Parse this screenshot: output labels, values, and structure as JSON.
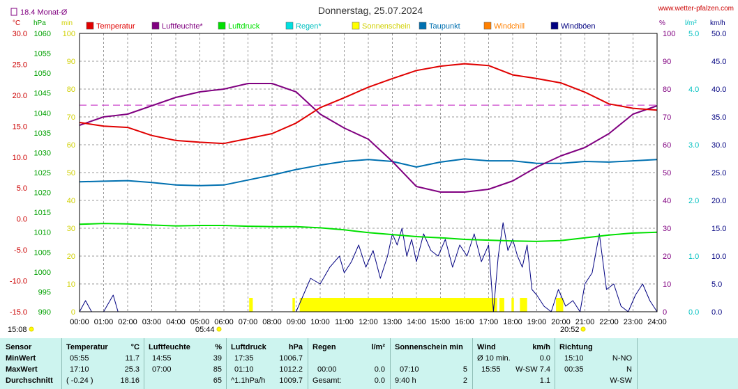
{
  "chart_data": {
    "type": "line",
    "title": "Donnerstag, 25.07.2024",
    "source": "www.wetter-pfalzen.com",
    "monthly_avg_label": "18.4 Monat-Ø",
    "grid": true,
    "axes": {
      "temp": {
        "unit": "°C",
        "range": [
          -15,
          30
        ],
        "ticks": [
          "-15.0",
          "-10.0",
          "-5.0",
          "0.0",
          "5.0",
          "10.0",
          "15.0",
          "20.0",
          "25.0",
          "30.0"
        ]
      },
      "pressure": {
        "unit": "hPa",
        "range": [
          990,
          1060
        ],
        "ticks": [
          "990",
          "995",
          "1000",
          "1005",
          "1010",
          "1015",
          "1020",
          "1025",
          "1030",
          "1035",
          "1040",
          "1045",
          "1050",
          "1055",
          "1060"
        ]
      },
      "sunshine": {
        "unit": "min",
        "range": [
          0,
          100
        ],
        "ticks": [
          "0",
          "10",
          "20",
          "30",
          "40",
          "50",
          "60",
          "70",
          "80",
          "90",
          "100"
        ]
      },
      "humidity": {
        "unit": "%",
        "range": [
          0,
          100
        ],
        "ticks": [
          "0",
          "10",
          "20",
          "30",
          "40",
          "50",
          "60",
          "70",
          "80",
          "90",
          "100"
        ]
      },
      "rain": {
        "unit": "l/m²",
        "range": [
          0,
          5
        ],
        "ticks": [
          "0.0",
          "1.0",
          "2.0",
          "3.0",
          "4.0",
          "5.0"
        ]
      },
      "wind": {
        "unit": "km/h",
        "range": [
          0,
          50
        ],
        "ticks": [
          "0.0",
          "5.0",
          "10.0",
          "15.0",
          "20.0",
          "25.0",
          "30.0",
          "35.0",
          "40.0",
          "45.0",
          "50.0"
        ]
      },
      "time": {
        "ticks": [
          "00:00",
          "01:00",
          "02:00",
          "03:00",
          "04:00",
          "05:00",
          "06:00",
          "07:00",
          "08:00",
          "09:00",
          "10:00",
          "11:00",
          "12:00",
          "13:00",
          "14:00",
          "15:00",
          "16:00",
          "17:00",
          "18:00",
          "19:00",
          "20:00",
          "21:00",
          "22:00",
          "23:00",
          "24:00"
        ]
      }
    },
    "sunrise": "05:44",
    "sunset": "20:52",
    "current_time": "15:08",
    "legend": [
      {
        "name": "Temperatur",
        "color": "#e00000"
      },
      {
        "name": "Luftfeuchte*",
        "color": "#800080"
      },
      {
        "name": "Luftdruck",
        "color": "#00e000"
      },
      {
        "name": "Regen*",
        "color": "#00e0e0"
      },
      {
        "name": "Sonnenschein",
        "color": "#ffff00"
      },
      {
        "name": "Taupunkt",
        "color": "#0070b0"
      },
      {
        "name": "Windchill",
        "color": "#ff8000"
      },
      {
        "name": "Windböen",
        "color": "#000080"
      }
    ],
    "series": [
      {
        "name": "Temperatur",
        "axis": "temp",
        "color": "#e00000",
        "x": [
          0,
          1,
          2,
          3,
          4,
          5,
          6,
          7,
          8,
          9,
          10,
          11,
          12,
          13,
          14,
          15,
          16,
          17,
          18,
          19,
          20,
          21,
          22,
          23,
          24
        ],
        "y": [
          15.6,
          15.0,
          14.8,
          13.5,
          12.7,
          12.4,
          12.2,
          13.0,
          13.8,
          15.5,
          18.0,
          19.6,
          21.3,
          22.7,
          24.0,
          24.7,
          25.1,
          24.8,
          23.3,
          22.7,
          22.0,
          20.5,
          18.6,
          17.9,
          17.6
        ]
      },
      {
        "name": "Luftfeuchte*",
        "axis": "humidity",
        "color": "#800080",
        "x": [
          0,
          1,
          2,
          3,
          4,
          5,
          6,
          7,
          8,
          9,
          10,
          11,
          12,
          13,
          14,
          15,
          16,
          17,
          18,
          19,
          20,
          21,
          22,
          23,
          24
        ],
        "y": [
          67,
          70,
          71,
          74,
          77,
          79,
          80,
          82,
          82,
          79,
          71,
          66,
          62,
          54,
          45,
          43,
          43,
          44,
          47,
          52,
          56,
          59,
          64,
          71,
          74
        ]
      },
      {
        "name": "Taupunkt",
        "axis": "temp",
        "color": "#0070b0",
        "x": [
          0,
          1,
          2,
          3,
          4,
          5,
          6,
          7,
          8,
          9,
          10,
          11,
          12,
          13,
          14,
          15,
          16,
          17,
          18,
          19,
          20,
          21,
          22,
          23,
          24
        ],
        "y": [
          6.0,
          6.1,
          6.2,
          5.9,
          5.5,
          5.4,
          5.5,
          6.3,
          7.1,
          8.0,
          8.7,
          9.3,
          9.6,
          9.3,
          8.4,
          9.2,
          9.7,
          9.4,
          9.4,
          9.0,
          9.0,
          9.3,
          9.2,
          9.4,
          9.6
        ]
      },
      {
        "name": "Luftdruck",
        "axis": "pressure",
        "color": "#00e000",
        "x": [
          0,
          1,
          2,
          3,
          4,
          5,
          6,
          7,
          8,
          9,
          10,
          11,
          12,
          13,
          14,
          15,
          16,
          17,
          18,
          19,
          20,
          21,
          22,
          23,
          24
        ],
        "y": [
          1012.0,
          1012.2,
          1012.1,
          1011.8,
          1011.6,
          1011.7,
          1011.7,
          1011.5,
          1011.4,
          1011.4,
          1011.1,
          1010.6,
          1009.9,
          1009.4,
          1008.9,
          1008.6,
          1008.2,
          1008.0,
          1007.8,
          1007.7,
          1007.9,
          1008.6,
          1009.3,
          1009.8,
          1010.0
        ]
      },
      {
        "name": "Windböen",
        "axis": "wind",
        "color": "#000080",
        "x": [
          0,
          0.25,
          0.5,
          1,
          1.4,
          1.6,
          2,
          3,
          4,
          5,
          6,
          7,
          8,
          9,
          9.3,
          9.6,
          10,
          10.4,
          10.8,
          11,
          11.3,
          11.6,
          11.9,
          12.2,
          12.5,
          12.8,
          13,
          13.2,
          13.4,
          13.6,
          13.8,
          14,
          14.3,
          14.6,
          14.9,
          15.2,
          15.5,
          15.8,
          16.1,
          16.4,
          16.7,
          17,
          17.2,
          17.4,
          17.6,
          17.8,
          18,
          18.2,
          18.4,
          18.6,
          18.8,
          19,
          19.3,
          19.6,
          19.9,
          20.2,
          20.5,
          20.8,
          21,
          21.3,
          21.6,
          21.9,
          22.2,
          22.5,
          22.8,
          23.1,
          23.4,
          23.7,
          24
        ],
        "y": [
          0,
          2,
          0,
          0,
          3,
          0,
          0,
          0,
          0,
          0,
          0,
          0,
          0,
          0,
          3,
          6,
          5,
          8,
          10,
          7,
          9,
          12,
          8,
          11,
          6,
          10,
          14,
          12,
          15,
          10,
          13,
          9,
          14,
          11,
          10,
          13,
          8,
          12,
          10,
          14,
          9,
          12,
          0,
          10,
          16,
          11,
          13,
          10,
          8,
          12,
          4,
          3,
          1,
          0,
          4,
          1,
          2,
          0,
          5,
          7,
          14,
          4,
          5,
          1,
          0,
          3,
          5,
          2,
          0
        ]
      }
    ],
    "sunshine_periods": [
      [
        7.05,
        7.2
      ],
      [
        8.85,
        8.95
      ],
      [
        9.15,
        17.35
      ],
      [
        17.45,
        17.65
      ],
      [
        17.95,
        18.05
      ],
      [
        18.3,
        18.6
      ],
      [
        19.8,
        20.1
      ]
    ],
    "monthly_avg_temp": 18.4
  },
  "table": {
    "rows": [
      "Sensor",
      "MinWert",
      "MaxWert",
      "Durchschnitt"
    ],
    "temperature": {
      "head": "Temperatur",
      "unit": "°C",
      "min_time": "05:55",
      "min": "11.7",
      "max_time": "17:10",
      "max": "25.3",
      "avg_trend": "( -0.24 )",
      "avg": "18.16"
    },
    "humidity": {
      "head": "Luftfeuchte",
      "unit": "%",
      "min_time": "14:55",
      "min": "39",
      "max_time": "07:00",
      "max": "85",
      "avg": "65"
    },
    "pressure": {
      "head": "Luftdruck",
      "unit": "hPa",
      "min_time": "17:35",
      "min": "1006.7",
      "max_time": "01:10",
      "max": "1012.2",
      "avg_trend": "^1.1hPa/h",
      "avg": "1009.7"
    },
    "rain": {
      "head": "Regen",
      "unit": "l/m²",
      "max_time": "00:00",
      "max": "0.0",
      "avg_label": "Gesamt:",
      "avg": "0.0"
    },
    "sunshine": {
      "head": "Sonnenschein min",
      "max_time": "07:10",
      "max": "5",
      "avg_label": "9:40 h",
      "avg": "2"
    },
    "wind": {
      "head": "Wind",
      "unit": "km/h",
      "min_label": "Ø 10 min.",
      "min": "0.0",
      "max_time": "15:55",
      "max": "W-SW 7.4",
      "avg": "1.1"
    },
    "direction": {
      "head": "Richtung",
      "min_time": "15:10",
      "min": "N-NO",
      "max_time": "00:35",
      "max": "N",
      "avg": "W-SW"
    }
  }
}
